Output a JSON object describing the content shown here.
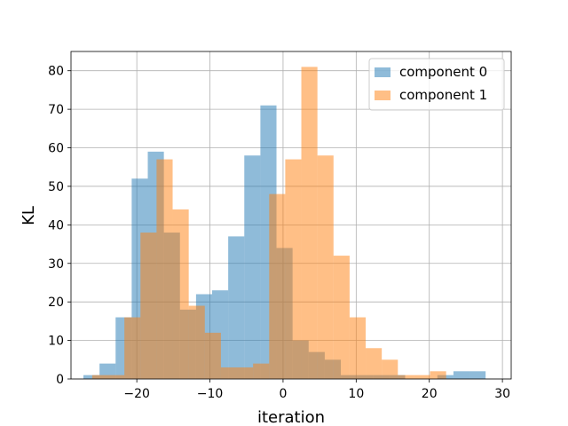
{
  "chart_data": {
    "type": "bar",
    "subtype": "overlaid-histogram",
    "xlabel": "iteration",
    "ylabel": "KL",
    "xlim": [
      -29.0,
      31.2
    ],
    "ylim": [
      0,
      85
    ],
    "xticks": [
      -20,
      -10,
      0,
      10,
      20,
      30
    ],
    "xtick_labels": [
      "−20",
      "−10",
      "0",
      "10",
      "20",
      "30"
    ],
    "yticks": [
      0,
      10,
      20,
      30,
      40,
      50,
      60,
      70,
      80
    ],
    "ytick_labels": [
      "0",
      "10",
      "20",
      "30",
      "40",
      "50",
      "60",
      "70",
      "80"
    ],
    "grid": true,
    "legend_position": "top-right",
    "series": [
      {
        "name": "component 0",
        "color": "#1f77b4",
        "opacity": 0.5,
        "bin_width": 2.2,
        "bin_edges_start": -27.3,
        "values": [
          1,
          4,
          16,
          52,
          59,
          38,
          18,
          22,
          23,
          37,
          58,
          71,
          34,
          10,
          7,
          5,
          1,
          1,
          1,
          1,
          0,
          0,
          1,
          2,
          2
        ]
      },
      {
        "name": "component 1",
        "color": "#ff7f0e",
        "opacity": 0.5,
        "bin_width": 2.2,
        "bin_edges_start": -26.1,
        "values": [
          1,
          1,
          16,
          38,
          57,
          44,
          19,
          12,
          3,
          3,
          4,
          48,
          57,
          81,
          58,
          32,
          16,
          8,
          5,
          1,
          1,
          2
        ]
      }
    ]
  }
}
